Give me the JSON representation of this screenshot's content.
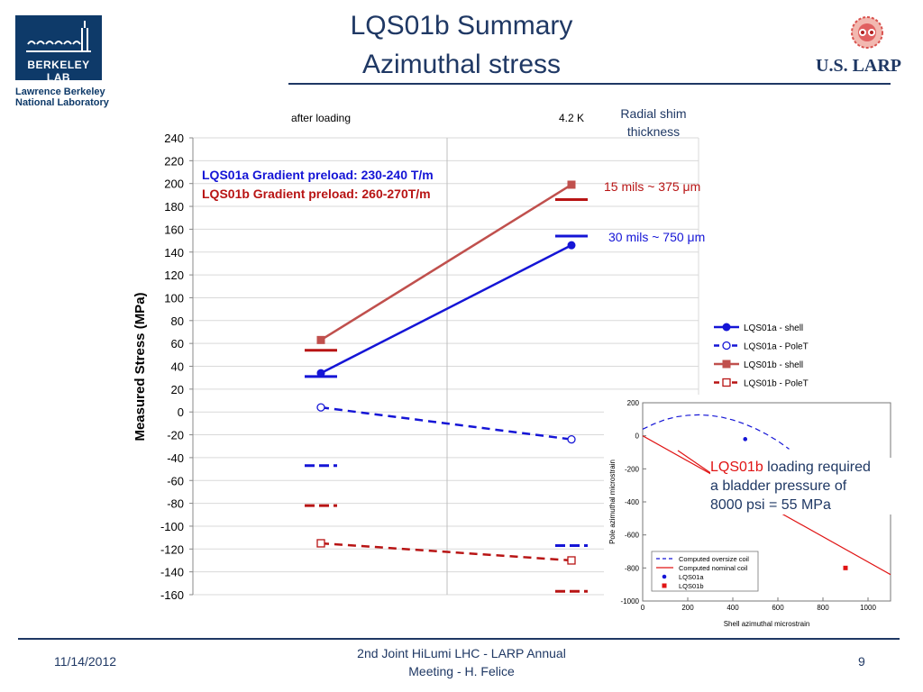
{
  "header": {
    "title_line1": "LQS01b Summary",
    "title_line2": "Azimuthal stress",
    "logo_text": "BERKELEY LAB",
    "lab_name_line1": "Lawrence Berkeley",
    "lab_name_line2": "National Laboratory",
    "larp_text": "U.S. LARP"
  },
  "footer": {
    "date": "11/14/2012",
    "center_line1": "2nd Joint HiLumi LHC - LARP Annual",
    "center_line2": "Meeting - H. Felice",
    "page": "9"
  },
  "colors": {
    "blue": "#1515d6",
    "red": "#c0504d",
    "dark_red": "#b81414",
    "navy": "#1f3864"
  },
  "chart_data": [
    {
      "type": "line",
      "categories": [
        "after loading",
        "4.2 K"
      ],
      "ylabel": "Measured Stress (MPa)",
      "ylim": [
        -160,
        240
      ],
      "yticks": [
        240,
        220,
        200,
        180,
        160,
        140,
        120,
        100,
        80,
        60,
        40,
        20,
        0,
        -20,
        -40,
        -60,
        -80,
        -100,
        -120,
        -140,
        -160
      ],
      "grid": "horizontal",
      "legend_position": "right",
      "series": [
        {
          "name": "LQS01a - shell",
          "values": [
            34,
            146
          ],
          "color": "#1515d6",
          "style": "solid",
          "marker": "filled-circle"
        },
        {
          "name": "LQS01a - PoleT",
          "values": [
            4,
            -24
          ],
          "color": "#1515d6",
          "style": "dashed",
          "marker": "open-circle"
        },
        {
          "name": "LQS01b - shell",
          "values": [
            63,
            199
          ],
          "color": "#c0504d",
          "style": "solid",
          "marker": "filled-square"
        },
        {
          "name": "LQS01b - PoleT",
          "values": [
            -115,
            -130
          ],
          "color": "#b81414",
          "style": "dashed",
          "marker": "open-square"
        }
      ],
      "reference_bars": [
        {
          "category": "after loading",
          "value": 31,
          "color": "#1515d6",
          "style": "solid"
        },
        {
          "category": "after loading",
          "value": 54,
          "color": "#b81414",
          "style": "solid"
        },
        {
          "category": "after loading",
          "value": -47,
          "color": "#1515d6",
          "style": "dashed"
        },
        {
          "category": "after loading",
          "value": -82,
          "color": "#b81414",
          "style": "dashed"
        },
        {
          "category": "4.2 K",
          "value": 154,
          "color": "#1515d6",
          "style": "solid"
        },
        {
          "category": "4.2 K",
          "value": 186,
          "color": "#b81414",
          "style": "solid"
        },
        {
          "category": "4.2 K",
          "value": -117,
          "color": "#1515d6",
          "style": "dashed"
        },
        {
          "category": "4.2 K",
          "value": -157,
          "color": "#b81414",
          "style": "dashed"
        }
      ],
      "annotations": {
        "preload_a": "LQS01a Gradient preload: 230-240 T/m",
        "preload_b": "LQS01b Gradient preload: 260-270T/m",
        "shim_title_line1": "Radial shim",
        "shim_title_line2": "thickness",
        "shim_b": "15 mils  ~ 375 μm",
        "shim_a": "30 mils  ~ 750 μm"
      }
    },
    {
      "type": "line",
      "xlabel": "Shell azimuthal microstrain",
      "ylabel": "Pole azimuthal microstrain",
      "xlim": [
        0,
        1100
      ],
      "ylim": [
        -1000,
        200
      ],
      "xticks": [
        0,
        200,
        400,
        600,
        800,
        1000
      ],
      "yticks": [
        200,
        0,
        -200,
        -400,
        -600,
        -800,
        -1000
      ],
      "series": [
        {
          "name": "Computed oversize coil",
          "color": "#1515d6",
          "style": "dashed",
          "x": [
            0,
            50,
            100,
            150,
            200,
            250,
            300,
            350,
            400,
            450,
            500,
            550,
            600,
            650
          ],
          "y": [
            40,
            72,
            98,
            115,
            124,
            127,
            123,
            113,
            96,
            73,
            44,
            9,
            -32,
            -80
          ]
        },
        {
          "name": "Computed nominal coil",
          "color": "#e01414",
          "style": "solid",
          "x": [
            0,
            1100
          ],
          "y": [
            0,
            -840
          ]
        },
        {
          "name": "LQS01a",
          "color": "#1515d6",
          "marker": "circle",
          "x": [
            455
          ],
          "y": [
            -20
          ]
        },
        {
          "name": "LQS01b",
          "color": "#e01414",
          "marker": "square",
          "x": [
            900
          ],
          "y": [
            -800
          ]
        }
      ],
      "annotation": {
        "highlight": "LQS01b",
        "text_rest_line1": " loading required",
        "text_line2": "a bladder pressure of",
        "text_line3": "8000 psi = 55 MPa"
      }
    }
  ]
}
